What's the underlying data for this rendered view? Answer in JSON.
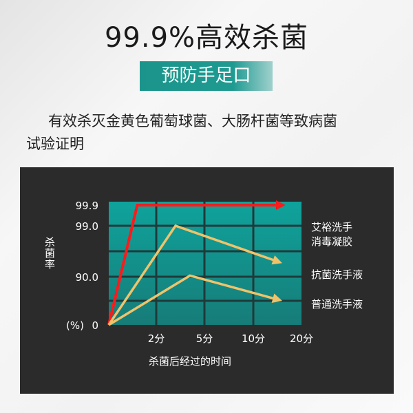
{
  "header": {
    "title": "99.9%高效杀菌",
    "banner": "预防手足口",
    "desc_line1": "有效杀灭金黄色葡萄球菌、大肠杆菌等致病菌",
    "desc_line2": "试验证明"
  },
  "chart_data": {
    "type": "line",
    "title": "",
    "ylabel": "杀菌率",
    "yunit": "(%)",
    "xlabel": "杀菌后经过的时间",
    "x_ticks": [
      {
        "value": 2,
        "label": "2分"
      },
      {
        "value": 5,
        "label": "5分"
      },
      {
        "value": 10,
        "label": "10分"
      },
      {
        "value": 20,
        "label": "20分"
      }
    ],
    "y_ticks": [
      {
        "value": 0,
        "label": "0"
      },
      {
        "value": 90,
        "label": "90.0"
      },
      {
        "value": 99,
        "label": "99.0"
      },
      {
        "value": 99.9,
        "label": "99.9"
      }
    ],
    "x_scale": "non-linear (evenly spaced ticks 0,2,5,10,20 min)",
    "y_scale": "non-linear",
    "grid": true,
    "legend_placement": "right",
    "plot_background": "#13918c",
    "series": [
      {
        "name": "艾裕洗手\n消毒凝胶",
        "name_lines": [
          "艾裕洗手",
          "消毒凝胶"
        ],
        "color": "#ff1a1a",
        "points": [
          [
            0,
            0
          ],
          [
            1.2,
            99.9
          ],
          [
            16.7,
            99.9
          ]
        ]
      },
      {
        "name": "抗菌洗手液",
        "name_lines": [
          "抗菌洗手液"
        ],
        "color": "#f0c36a",
        "points": [
          [
            0,
            0
          ],
          [
            3.2,
            99.0
          ],
          [
            16,
            92.4
          ]
        ]
      },
      {
        "name": "普通洗手液",
        "name_lines": [
          "普通洗手液"
        ],
        "color": "#f0c36a",
        "points": [
          [
            0,
            0
          ],
          [
            4.1,
            90.2
          ],
          [
            16,
            45
          ]
        ]
      }
    ]
  }
}
